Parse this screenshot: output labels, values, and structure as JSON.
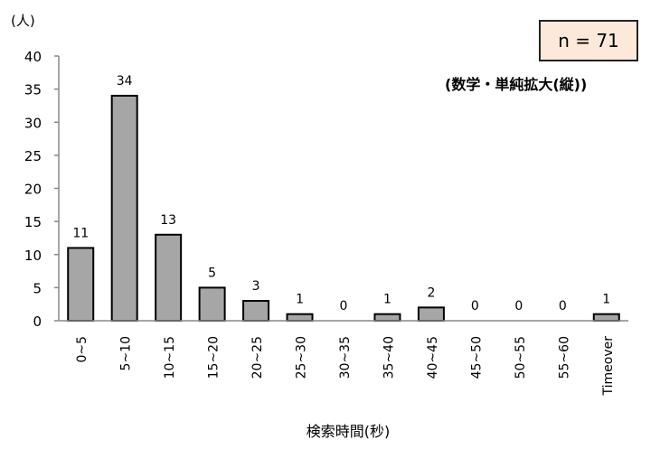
{
  "chart_data": {
    "type": "bar",
    "categories": [
      "0~5",
      "5~10",
      "10~15",
      "15~20",
      "20~25",
      "25~30",
      "30~35",
      "35~40",
      "40~45",
      "45~50",
      "50~55",
      "55~60",
      "Timeover"
    ],
    "values": [
      11,
      34,
      13,
      5,
      3,
      1,
      0,
      1,
      2,
      0,
      0,
      0,
      1
    ],
    "xlabel": "検索時間(秒)",
    "ylabel": "(人)",
    "ylim": [
      0,
      40
    ],
    "yticks": [
      0,
      5,
      10,
      15,
      20,
      25,
      30,
      35,
      40
    ],
    "grid": false,
    "legend": null,
    "bar_color": "#a6a6a6",
    "annotations": {
      "n_label": "n = 71",
      "subtitle": "(数学・単純拡大(縦))",
      "n_box_color": "#fde9d9"
    }
  }
}
